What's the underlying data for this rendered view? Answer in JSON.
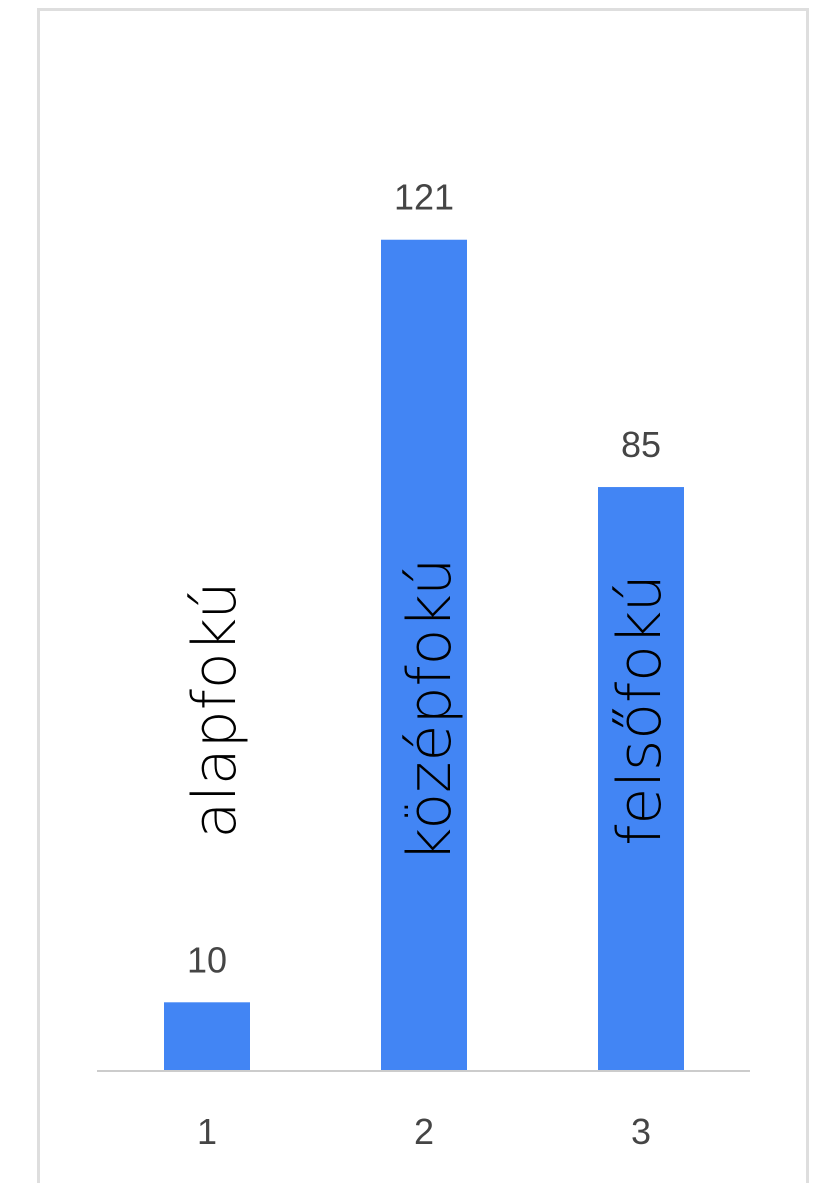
{
  "chart_data": {
    "type": "bar",
    "categories": [
      "1",
      "2",
      "3"
    ],
    "values": [
      10,
      121,
      85
    ],
    "series": [
      {
        "values": [
          10,
          121,
          85
        ],
        "color": "#4285f4"
      }
    ],
    "data_labels": [
      "10",
      "121",
      "85"
    ],
    "annotations": [
      "alapfokú",
      "középfokú",
      "felsőfokú"
    ],
    "ylim": [
      0,
      130
    ],
    "grid": false,
    "legend": "none",
    "bar_color": "#4285f4",
    "baseline_color": "#cccccc"
  }
}
